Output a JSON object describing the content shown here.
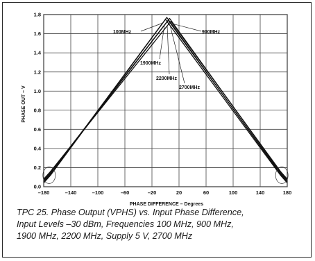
{
  "chart_data": {
    "type": "line",
    "xlabel": "PHASE DIFFERENCE – Degrees",
    "ylabel": "PHASE OUT – V",
    "xlim": [
      -180,
      180
    ],
    "ylim": [
      0,
      1.8
    ],
    "x_ticks": [
      "–180",
      "–140",
      "–100",
      "–60",
      "–20",
      "20",
      "60",
      "100",
      "140",
      "180"
    ],
    "x_tick_values": [
      -180,
      -140,
      -100,
      -60,
      -20,
      20,
      60,
      100,
      140,
      180
    ],
    "y_ticks": [
      "0.0",
      "0.2",
      "0.4",
      "0.6",
      "0.8",
      "1.0",
      "1.2",
      "1.4",
      "1.6",
      "1.8"
    ],
    "y_tick_values": [
      0,
      0.2,
      0.4,
      0.6,
      0.8,
      1.0,
      1.2,
      1.4,
      1.6,
      1.8
    ],
    "grid": true,
    "annotations": [
      "100MHz",
      "900MHz",
      "1900MHz",
      "2200MHz",
      "2700MHz"
    ],
    "series": [
      {
        "name": "100MHz",
        "x": [
          -180,
          -170,
          0,
          170,
          180
        ],
        "y": [
          0.04,
          0.12,
          1.75,
          0.12,
          0.04
        ]
      },
      {
        "name": "900MHz",
        "x": [
          -180,
          -170,
          2,
          170,
          180
        ],
        "y": [
          0.05,
          0.13,
          1.77,
          0.13,
          0.05
        ]
      },
      {
        "name": "1900MHz",
        "x": [
          -180,
          -170,
          4,
          170,
          180
        ],
        "y": [
          0.06,
          0.14,
          1.74,
          0.14,
          0.06
        ]
      },
      {
        "name": "2200MHz",
        "x": [
          -180,
          -170,
          6,
          170,
          180
        ],
        "y": [
          0.07,
          0.15,
          1.76,
          0.15,
          0.07
        ]
      },
      {
        "name": "2700MHz",
        "x": [
          -180,
          -170,
          8,
          170,
          180
        ],
        "y": [
          0.08,
          0.16,
          1.73,
          0.16,
          0.08
        ]
      }
    ]
  },
  "caption": {
    "line1": "TPC 25.  Phase Output (VPHS) vs. Input Phase Difference,",
    "line2": "Input Levels –30 dBm, Frequencies 100 MHz, 900 MHz,",
    "line3": "1900 MHz, 2200 MHz, Supply 5 V, 2700 MHz"
  }
}
